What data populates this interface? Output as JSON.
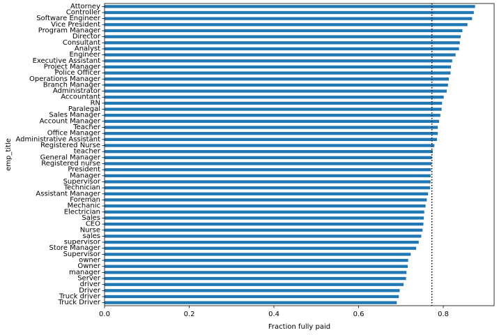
{
  "chart_data": {
    "type": "bar",
    "orientation": "horizontal",
    "title": "",
    "xlabel": "Fraction fully paid",
    "ylabel": "emp_title",
    "xlim": [
      0,
      0.92
    ],
    "xticks": [
      0.0,
      0.2,
      0.4,
      0.6,
      0.8
    ],
    "xtick_labels": [
      "0.0",
      "0.2",
      "0.4",
      "0.6",
      "0.8"
    ],
    "grid": false,
    "bar_color": "#1f77b4",
    "reference_line": {
      "x": 0.773,
      "style": "dotted",
      "color": "#000000"
    },
    "categories": [
      "Attorney",
      "Controller",
      "Software Engineer",
      "Vice President",
      "Program Manager",
      "Director",
      "Consultant",
      "Analyst",
      "Engineer",
      "Executive Assistant",
      "Project Manager",
      "Police Officer",
      "Operations Manager",
      "Branch Manager",
      "Administrator",
      "Accountant",
      "RN",
      "Paralegal",
      "Sales Manager",
      "Account Manager",
      "Teacher",
      "Office Manager",
      "Administrative Assistant",
      "Registered Nurse",
      "teacher",
      "General Manager",
      "Registered nurse",
      "President",
      "Manager",
      "Supervisor",
      "Technician",
      "Assistant Manager",
      "Foreman",
      "Mechanic",
      "Electrician",
      "Sales",
      "CEO",
      "Nurse",
      "sales",
      "supervisor",
      "Store Manager",
      "Supervisor ",
      "owner",
      "Owner",
      "manager",
      "Server",
      "driver",
      "Driver",
      "Truck driver",
      "Truck Driver"
    ],
    "values": [
      0.875,
      0.872,
      0.868,
      0.857,
      0.845,
      0.841,
      0.839,
      0.837,
      0.829,
      0.821,
      0.818,
      0.817,
      0.813,
      0.811,
      0.808,
      0.801,
      0.797,
      0.796,
      0.793,
      0.79,
      0.787,
      0.787,
      0.785,
      0.779,
      0.775,
      0.773,
      0.772,
      0.771,
      0.77,
      0.77,
      0.769,
      0.764,
      0.761,
      0.758,
      0.755,
      0.754,
      0.753,
      0.751,
      0.748,
      0.742,
      0.736,
      0.723,
      0.717,
      0.716,
      0.713,
      0.712,
      0.706,
      0.697,
      0.695,
      0.69
    ]
  }
}
